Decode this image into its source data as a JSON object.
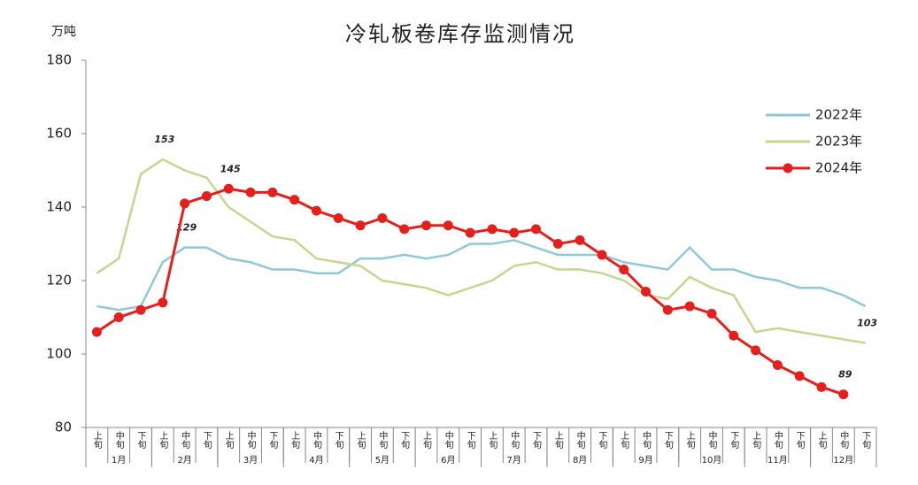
{
  "chart_data": {
    "type": "line",
    "title": "冷轧板卷库存监测情况",
    "y_label": "万吨",
    "categories": [
      "上旬",
      "中旬",
      "下旬",
      "上旬",
      "中旬",
      "下旬",
      "上旬",
      "中旬",
      "下旬",
      "上旬",
      "中旬",
      "下旬",
      "上旬",
      "中旬",
      "下旬",
      "上旬",
      "中旬",
      "下旬",
      "上旬",
      "中旬",
      "下旬",
      "上旬",
      "中旬",
      "下旬",
      "上旬",
      "中旬",
      "下旬",
      "上旬",
      "中旬",
      "下旬",
      "上旬",
      "中旬",
      "下旬",
      "上旬",
      "中旬",
      "下旬"
    ],
    "groups": [
      "1月",
      "2月",
      "3月",
      "4月",
      "5月",
      "6月",
      "7月",
      "8月",
      "9月",
      "10月",
      "11月",
      "12月"
    ],
    "ylim": [
      80,
      180
    ],
    "yticks": [
      80,
      100,
      120,
      140,
      160,
      180
    ],
    "legend": "right",
    "series": [
      {
        "name": "2022年",
        "color": "#8ec9d9",
        "markers": false,
        "values": [
          113,
          112,
          113,
          125,
          129,
          129,
          126,
          125,
          123,
          123,
          122,
          122,
          126,
          126,
          127,
          126,
          127,
          130,
          130,
          131,
          129,
          127,
          127,
          127,
          125,
          124,
          123,
          129,
          123,
          123,
          121,
          120,
          118,
          118,
          116,
          113
        ],
        "value_labels": [
          null,
          null,
          null,
          null,
          "129",
          null,
          null,
          null,
          null,
          null,
          null,
          null,
          null,
          null,
          null,
          null,
          null,
          null,
          null,
          null,
          null,
          null,
          null,
          null,
          null,
          null,
          null,
          null,
          null,
          null,
          null,
          null,
          null,
          null,
          null,
          null
        ]
      },
      {
        "name": "2023年",
        "color": "#c6d690",
        "markers": false,
        "values": [
          122,
          126,
          149,
          153,
          150,
          148,
          140,
          136,
          132,
          131,
          126,
          125,
          124,
          120,
          119,
          118,
          116,
          118,
          120,
          124,
          125,
          123,
          123,
          122,
          120,
          116,
          115,
          121,
          118,
          116,
          106,
          107,
          106,
          105,
          104,
          103
        ],
        "value_labels": [
          null,
          null,
          null,
          "153",
          null,
          null,
          null,
          null,
          null,
          null,
          null,
          null,
          null,
          null,
          null,
          null,
          null,
          null,
          null,
          null,
          null,
          null,
          null,
          null,
          null,
          null,
          null,
          null,
          null,
          null,
          null,
          null,
          null,
          null,
          null,
          "103"
        ]
      },
      {
        "name": "2024年",
        "color": "#e5201c",
        "markers": true,
        "values": [
          106,
          110,
          112,
          114,
          141,
          143,
          145,
          144,
          144,
          142,
          139,
          137,
          135,
          137,
          134,
          135,
          135,
          133,
          134,
          133,
          134,
          130,
          131,
          127,
          123,
          117,
          112,
          113,
          111,
          105,
          101,
          97,
          94,
          91,
          89,
          null
        ],
        "value_labels": [
          null,
          null,
          null,
          null,
          null,
          null,
          "145",
          null,
          null,
          null,
          null,
          null,
          null,
          null,
          null,
          null,
          null,
          null,
          null,
          null,
          null,
          null,
          null,
          null,
          null,
          null,
          null,
          null,
          null,
          null,
          null,
          null,
          null,
          null,
          "89",
          null
        ]
      }
    ]
  }
}
